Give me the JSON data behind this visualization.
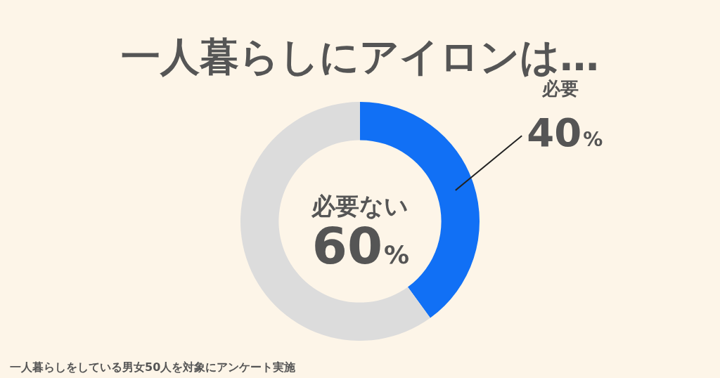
{
  "chart_data": {
    "type": "donut",
    "title": "一人暮らしにアイロンは…",
    "categories": [
      "必要",
      "必要ない"
    ],
    "values": [
      40,
      60
    ],
    "colors": [
      "#1170f5",
      "#dcdcdc"
    ],
    "value_labels": [
      "40%",
      "60%"
    ],
    "legend": false,
    "annotations": [
      "一人暮らしをしている男女50人を対象にアンケート実施"
    ]
  }
}
